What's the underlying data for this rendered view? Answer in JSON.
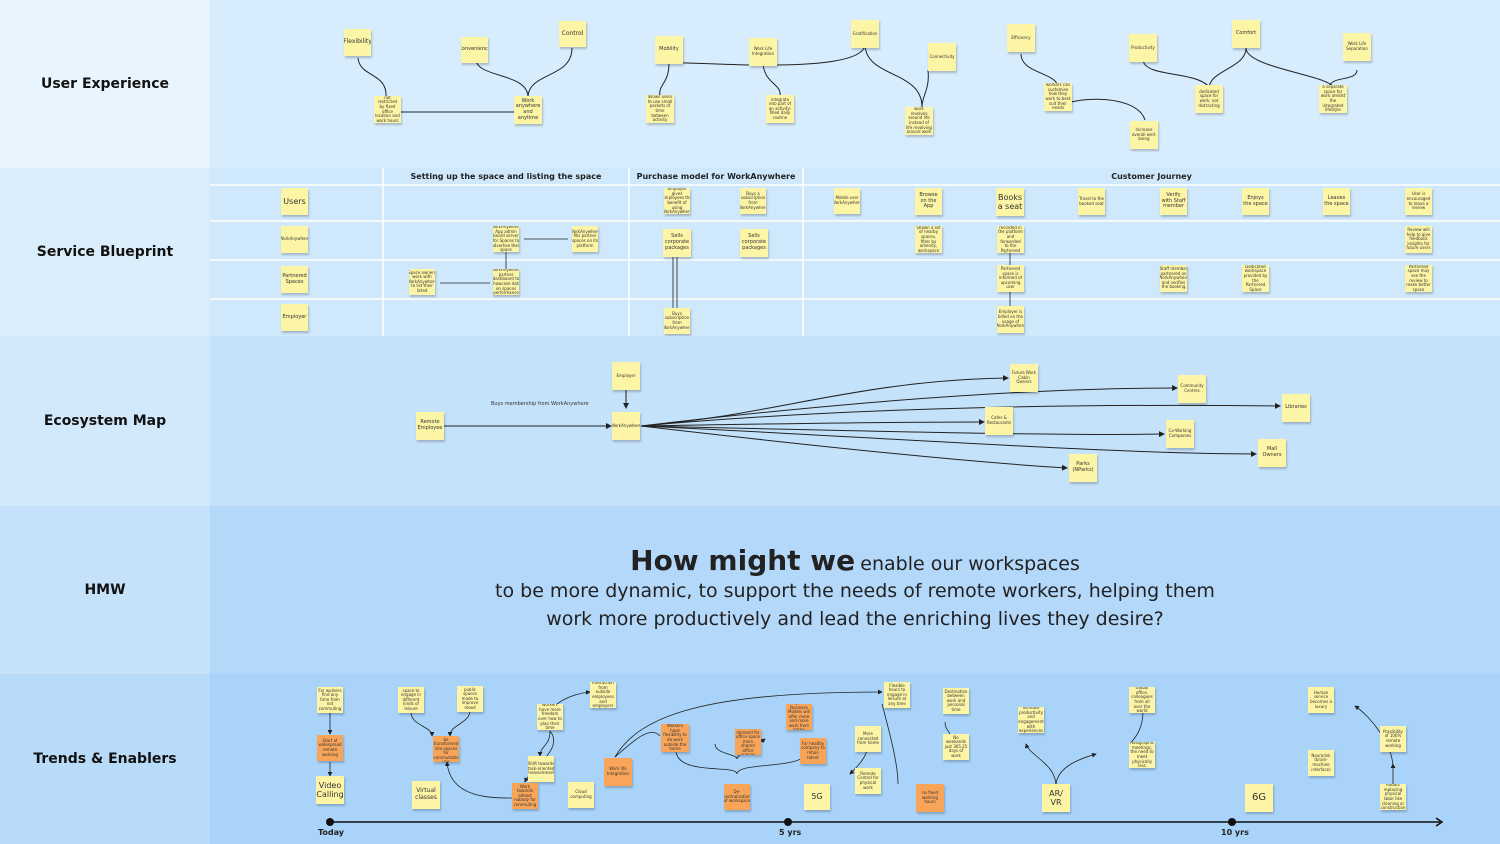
{
  "bands": {
    "ux": "User Experience",
    "sb": "Service Blueprint",
    "eco": "Ecosystem Map",
    "hmw": "HMW",
    "te": "Trends & Enablers"
  },
  "ux": {
    "flexibility": "Flexibility",
    "convenience": "Convenience",
    "control": "Control",
    "not_restricted": "not restricted by fixed office location and work hours",
    "work_anywhere": "Work anywhere and anytime",
    "mobility": "Mobility",
    "wli": "Work Life Integration",
    "gratification": "Gratification",
    "connectivity": "Connectivity",
    "allows_users": "allows users to use small pockets of time between activity",
    "integrate": "integrate into part of an activity-filled daily routine",
    "work_revolves": "work revolves around life instead of life revolving around work",
    "efficiency": "Efficiency",
    "productivity": "Productivity",
    "comfort": "Comfort",
    "wls": "Work Life Separation",
    "workers_can": "workers can customise how they work to best suit their needs",
    "dedicated": "dedicated space for work, not distracting",
    "separate": "a separate space for work amidst the integrated lifestyle",
    "wellbeing": "Increase overall well-being"
  },
  "sb": {
    "headers": [
      "Setting up the space and listing the space",
      "Purchase model for WorkAnywhere",
      "Customer Journey"
    ],
    "rows": [
      "Users",
      "WorkAnywhere",
      "Partnered Spaces",
      "Employer"
    ],
    "n1": "WorkAnywhere App admin board server for Spaces to advertise their space",
    "n2": "WorkAnywhere fills partner spaces on its platform",
    "n3": "Space owners work with WorkAnywhere to list their listed",
    "n4": "WorkAnywhere partner dashboard to showcase data on spaces performance",
    "p1": "Employer gives Employees the benefit of using WorkAnywhere",
    "p2": "Buys a subscription from WorkAnywhere",
    "p3": "Sells corporate packages",
    "p4": "Sells corporate packages",
    "p5": "Buys subscription from WorkAnywhere",
    "c1": "Mobile user WorkAnywhere",
    "c2": "Browse on the App",
    "c3": "Books a seat",
    "c4": "Travel to the booked seat",
    "c5": "Verify with Staff member",
    "c6": "Enjoys the space",
    "c7": "Leaves the space",
    "c8": "User is encouraged to leave a review",
    "w1": "Shown a list of nearby spaces, filter by amenity, workspace",
    "w2": "Booking is recorded in the platform and forwarded to the Partnered Space",
    "w3": "Review will help to give feedback insights for future users",
    "q1": "Partnered space is informed of upcoming user",
    "q2": "Staff member partnered on WorkAnywhere and verifies the booking",
    "q3": "Dedicated workspace provided by the Partnered Space",
    "q4": "Partnered space may see the review to make better space",
    "e1": "Employer is billed on the usage of WorkAnywhere"
  },
  "eco": {
    "employer": "Employer",
    "remote": "Remote Employee",
    "wa": "WorkAnywhere",
    "buys": "Buys membership from WorkAnywhere",
    "future": "Future Work Cabin Owners",
    "community": "Community Centres",
    "libraries": "Libraries",
    "cafes": "Cafes & Restaurants",
    "coworking": "Co-Working Companies",
    "mall": "Mall Owners",
    "parks": "Parks (NParks)"
  },
  "hmw": {
    "lead": "How might we",
    "rest": "enable our workspaces",
    "line2": "to be more dynamic, to support the needs of remote workers, helping them",
    "line3": "work more productively and lead the enriching lives they desire?"
  },
  "te": {
    "t1": "For workers find any time from not commuting",
    "t2": "Start of widespread remote working",
    "t3": "Video Calling",
    "t4": "space to engage in different kinds of leisure",
    "t5": "public spaces made to improve mood",
    "t6": "Hotels can be transformed into spaces for commutable use",
    "t7": "Virtual classes",
    "t8": "workers have more freedom over how to plan their time",
    "t9": "Interaction from outside employees and employers",
    "t10": "Shift towards task-oriented measurement",
    "t11": "Work towards almost nobody for commuting",
    "t12": "Cloud computing",
    "t13": "Workers have flexibility to do work outside the home",
    "t14": "Work life Integration",
    "t15": "Less demand for office space more shared office spaces",
    "t16": "Hybrid Business Models will offer more and more work from home",
    "t17": "For healthy company to retain talent",
    "t18": "De-centralisation of workspace",
    "t19": "5G",
    "t20": "Flexible hours to engage in leisure at any time",
    "t21": "Remote Control for physical work",
    "t22": "More connected from home",
    "t23": "no fixed working hours",
    "t24": "Destination between work and personal time",
    "t25": "No weekends just 365.25 days of work",
    "t26": "increase productivity and engagement with experiences",
    "t27": "AR/ VR",
    "t28": "Global office, colleagues from all over the world",
    "t29": "Holographic meetings, the need to meet physically less",
    "t30": "6G",
    "t31": "Human service becomes a luxury",
    "t32": "Neuralink (brain-machine interface)",
    "t33": "Possibility of 100% remote working",
    "t34": "Robots replacing physical labor like cleaning or construction",
    "today": "Today",
    "five": "5 yrs",
    "ten": "10 yrs"
  }
}
